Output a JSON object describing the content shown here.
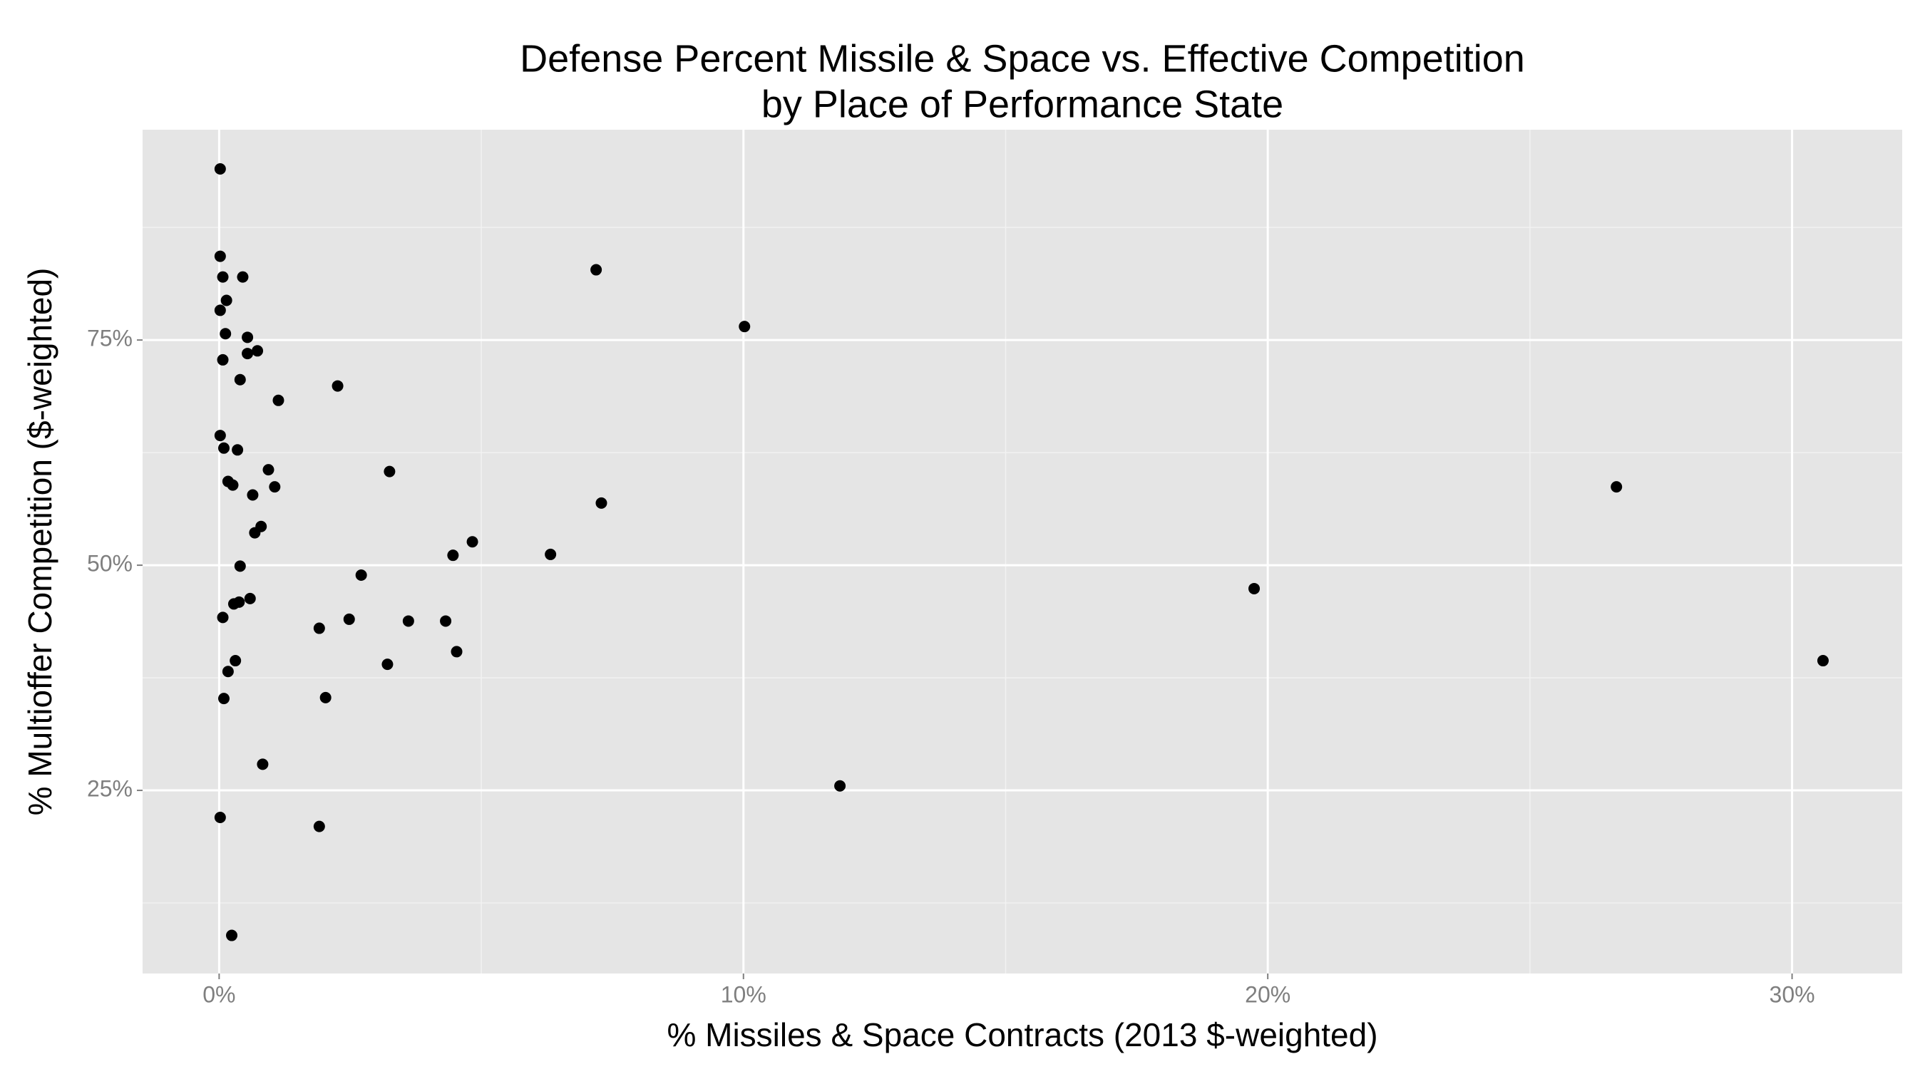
{
  "chart_data": {
    "type": "scatter",
    "title": "Defense Percent Missile & Space vs. Effective Competition",
    "subtitle": "by Place of Performance State",
    "x_label": "% Missiles & Space Contracts (2013 $-weighted)",
    "y_label": "% Multioffer Competition ($-weighted)",
    "color": "#000000",
    "grid": true,
    "xlim": [
      -1.46,
      32.1
    ],
    "ylim": [
      4.67,
      98.35
    ],
    "xticks": [
      {
        "value": 0,
        "label": "0%"
      },
      {
        "value": 10,
        "label": "10%"
      },
      {
        "value": 20,
        "label": "20%"
      },
      {
        "value": 30,
        "label": "30%"
      }
    ],
    "yticks": [
      {
        "value": 25,
        "label": "25%"
      },
      {
        "value": 50,
        "label": "50%"
      },
      {
        "value": 75,
        "label": "75%"
      }
    ],
    "x_minor_grid": [
      5,
      15,
      25
    ],
    "y_minor_grid": [
      12.5,
      37.5,
      62.5,
      87.5
    ],
    "x": [
      0.02,
      0.02,
      0.07,
      0.45,
      0.14,
      0.02,
      0.12,
      0.54,
      0.54,
      0.73,
      0.07,
      0.4,
      1.13,
      2.26,
      7.19,
      10.02,
      0.02,
      0.09,
      0.35,
      0.94,
      3.25,
      0.17,
      0.26,
      1.06,
      0.64,
      7.29,
      26.65,
      0.8,
      0.68,
      4.83,
      4.46,
      6.32,
      0.4,
      2.71,
      19.74,
      0.59,
      0.38,
      0.28,
      0.07,
      2.48,
      3.61,
      4.32,
      1.91,
      4.53,
      3.21,
      0.31,
      0.17,
      30.59,
      0.09,
      2.03,
      0.83,
      11.84,
      0.02,
      1.91,
      0.24
    ],
    "values": [
      94.0,
      84.3,
      82.0,
      82.0,
      79.4,
      78.3,
      75.7,
      75.3,
      73.5,
      73.8,
      72.8,
      70.6,
      68.3,
      69.9,
      82.8,
      76.5,
      64.4,
      63.0,
      62.8,
      60.6,
      60.4,
      59.3,
      58.9,
      58.7,
      57.8,
      56.9,
      58.7,
      54.3,
      53.6,
      52.6,
      51.1,
      51.2,
      49.9,
      48.9,
      47.4,
      46.3,
      45.9,
      45.7,
      44.2,
      44.0,
      43.8,
      43.8,
      43.0,
      40.4,
      39.0,
      39.4,
      38.2,
      39.4,
      35.2,
      35.3,
      27.9,
      25.5,
      22.0,
      21.0,
      8.9
    ]
  }
}
